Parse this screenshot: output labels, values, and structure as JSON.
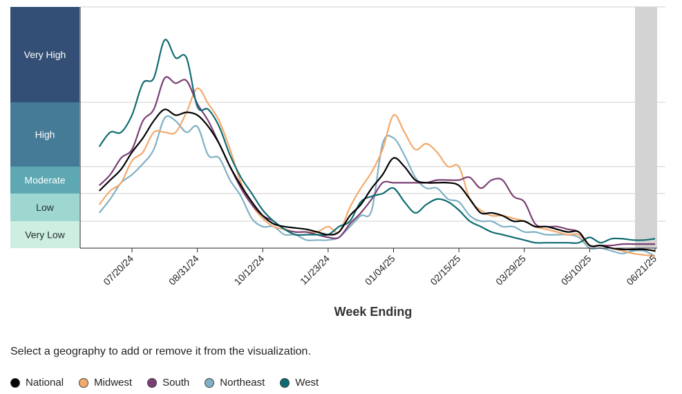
{
  "chart_data": {
    "type": "line",
    "xlabel": "Week Ending",
    "x_ticks": [
      "07/20/24",
      "08/31/24",
      "10/12/24",
      "11/23/24",
      "01/04/25",
      "02/15/25",
      "03/29/25",
      "05/10/25",
      "06/21/25"
    ],
    "levels": [
      {
        "label": "Very High",
        "color": "#344f76"
      },
      {
        "label": "High",
        "color": "#467b97"
      },
      {
        "label": "Moderate",
        "color": "#5ea8b3"
      },
      {
        "label": "Low",
        "color": "#9dd7d0"
      },
      {
        "label": "Very Low",
        "color": "#cdeee0"
      }
    ],
    "y_note": "level scale 0-100; Very Low 0-10, Low 10-20, Moderate 20-30, High 30-52.5, Very High 52.5-90",
    "ylim": [
      0,
      90
    ],
    "series": [
      {
        "name": "National",
        "color": "#000000",
        "points": [
          [
            "2024-06-29",
            21
          ],
          [
            "2024-07-06",
            25
          ],
          [
            "2024-07-13",
            29
          ],
          [
            "2024-07-20",
            35
          ],
          [
            "2024-07-27",
            40
          ],
          [
            "2024-08-03",
            46
          ],
          [
            "2024-08-10",
            50
          ],
          [
            "2024-08-17",
            48
          ],
          [
            "2024-08-24",
            49
          ],
          [
            "2024-08-31",
            48
          ],
          [
            "2024-09-07",
            44
          ],
          [
            "2024-09-14",
            38
          ],
          [
            "2024-09-21",
            30
          ],
          [
            "2024-09-28",
            23
          ],
          [
            "2024-10-05",
            17
          ],
          [
            "2024-10-12",
            12
          ],
          [
            "2024-10-19",
            9
          ],
          [
            "2024-10-26",
            8
          ],
          [
            "2024-11-02",
            7.5
          ],
          [
            "2024-11-09",
            7
          ],
          [
            "2024-11-16",
            6
          ],
          [
            "2024-11-23",
            5
          ],
          [
            "2024-11-30",
            6
          ],
          [
            "2024-12-07",
            12
          ],
          [
            "2024-12-14",
            16
          ],
          [
            "2024-12-21",
            22
          ],
          [
            "2024-12-28",
            27
          ],
          [
            "2025-01-04",
            33
          ],
          [
            "2025-01-11",
            30
          ],
          [
            "2025-01-18",
            25
          ],
          [
            "2025-01-25",
            24
          ],
          [
            "2025-02-01",
            24
          ],
          [
            "2025-02-08",
            24
          ],
          [
            "2025-02-15",
            23
          ],
          [
            "2025-02-22",
            18
          ],
          [
            "2025-03-01",
            13
          ],
          [
            "2025-03-08",
            13
          ],
          [
            "2025-03-15",
            12
          ],
          [
            "2025-03-22",
            10
          ],
          [
            "2025-03-29",
            10
          ],
          [
            "2025-04-05",
            8
          ],
          [
            "2025-04-12",
            8
          ],
          [
            "2025-04-19",
            7
          ],
          [
            "2025-04-26",
            6
          ],
          [
            "2025-05-03",
            6
          ],
          [
            "2025-05-10",
            1
          ],
          [
            "2025-05-17",
            1
          ],
          [
            "2025-05-24",
            0
          ],
          [
            "2025-05-31",
            -0.5
          ],
          [
            "2025-06-07",
            -0.5
          ],
          [
            "2025-06-14",
            -0.5
          ],
          [
            "2025-06-21",
            -1
          ]
        ]
      },
      {
        "name": "Midwest",
        "color": "#f2a96b",
        "points": [
          [
            "2024-06-29",
            16
          ],
          [
            "2024-07-06",
            21
          ],
          [
            "2024-07-13",
            24
          ],
          [
            "2024-07-20",
            32
          ],
          [
            "2024-07-27",
            35
          ],
          [
            "2024-08-03",
            42
          ],
          [
            "2024-08-10",
            42
          ],
          [
            "2024-08-17",
            42
          ],
          [
            "2024-08-24",
            49
          ],
          [
            "2024-08-31",
            58
          ],
          [
            "2024-09-07",
            52
          ],
          [
            "2024-09-14",
            46
          ],
          [
            "2024-09-21",
            36
          ],
          [
            "2024-09-28",
            24
          ],
          [
            "2024-10-05",
            16
          ],
          [
            "2024-10-12",
            11
          ],
          [
            "2024-10-19",
            8
          ],
          [
            "2024-10-26",
            7
          ],
          [
            "2024-11-02",
            6
          ],
          [
            "2024-11-09",
            6
          ],
          [
            "2024-11-16",
            6
          ],
          [
            "2024-11-23",
            8
          ],
          [
            "2024-11-30",
            6
          ],
          [
            "2024-12-07",
            15
          ],
          [
            "2024-12-14",
            22
          ],
          [
            "2024-12-21",
            28
          ],
          [
            "2024-12-28",
            36
          ],
          [
            "2025-01-04",
            48
          ],
          [
            "2025-01-11",
            42
          ],
          [
            "2025-01-18",
            36
          ],
          [
            "2025-01-25",
            38
          ],
          [
            "2025-02-01",
            35
          ],
          [
            "2025-02-08",
            30
          ],
          [
            "2025-02-15",
            30
          ],
          [
            "2025-02-22",
            18
          ],
          [
            "2025-03-01",
            14
          ],
          [
            "2025-03-08",
            12
          ],
          [
            "2025-03-15",
            12
          ],
          [
            "2025-03-22",
            11
          ],
          [
            "2025-03-29",
            10
          ],
          [
            "2025-04-05",
            8
          ],
          [
            "2025-04-12",
            7
          ],
          [
            "2025-04-19",
            6
          ],
          [
            "2025-04-26",
            5
          ],
          [
            "2025-05-03",
            5
          ],
          [
            "2025-05-10",
            1
          ],
          [
            "2025-05-17",
            1
          ],
          [
            "2025-05-24",
            0
          ],
          [
            "2025-05-31",
            -1
          ],
          [
            "2025-06-07",
            -2
          ],
          [
            "2025-06-14",
            -2.5
          ],
          [
            "2025-06-21",
            -3
          ]
        ]
      },
      {
        "name": "South",
        "color": "#7b3f73",
        "points": [
          [
            "2024-06-29",
            23
          ],
          [
            "2024-07-06",
            27
          ],
          [
            "2024-07-13",
            33
          ],
          [
            "2024-07-20",
            36
          ],
          [
            "2024-07-27",
            46
          ],
          [
            "2024-08-03",
            50
          ],
          [
            "2024-08-10",
            62
          ],
          [
            "2024-08-17",
            60
          ],
          [
            "2024-08-24",
            61
          ],
          [
            "2024-08-31",
            52
          ],
          [
            "2024-09-07",
            46
          ],
          [
            "2024-09-14",
            38
          ],
          [
            "2024-09-21",
            30
          ],
          [
            "2024-09-28",
            22
          ],
          [
            "2024-10-05",
            16
          ],
          [
            "2024-10-12",
            12
          ],
          [
            "2024-10-19",
            10
          ],
          [
            "2024-10-26",
            7
          ],
          [
            "2024-11-02",
            6
          ],
          [
            "2024-11-09",
            6
          ],
          [
            "2024-11-16",
            5
          ],
          [
            "2024-11-23",
            4
          ],
          [
            "2024-11-30",
            4
          ],
          [
            "2024-12-07",
            9
          ],
          [
            "2024-12-14",
            13
          ],
          [
            "2024-12-21",
            18
          ],
          [
            "2024-12-28",
            24
          ],
          [
            "2025-01-04",
            24
          ],
          [
            "2025-01-11",
            24
          ],
          [
            "2025-01-18",
            24
          ],
          [
            "2025-01-25",
            24
          ],
          [
            "2025-02-01",
            25
          ],
          [
            "2025-02-08",
            25
          ],
          [
            "2025-02-15",
            25
          ],
          [
            "2025-02-22",
            26
          ],
          [
            "2025-03-01",
            22
          ],
          [
            "2025-03-08",
            25
          ],
          [
            "2025-03-15",
            25
          ],
          [
            "2025-03-22",
            19
          ],
          [
            "2025-03-29",
            17
          ],
          [
            "2025-04-05",
            9
          ],
          [
            "2025-04-12",
            8
          ],
          [
            "2025-04-19",
            8
          ],
          [
            "2025-04-26",
            7
          ],
          [
            "2025-05-03",
            6
          ],
          [
            "2025-05-10",
            1
          ],
          [
            "2025-05-17",
            1
          ],
          [
            "2025-05-24",
            1
          ],
          [
            "2025-05-31",
            1.5
          ],
          [
            "2025-06-07",
            1.5
          ],
          [
            "2025-06-14",
            1.5
          ],
          [
            "2025-06-21",
            1.5
          ]
        ]
      },
      {
        "name": "Northeast",
        "color": "#7fb0c4",
        "points": [
          [
            "2024-06-29",
            13
          ],
          [
            "2024-07-06",
            18
          ],
          [
            "2024-07-13",
            24
          ],
          [
            "2024-07-20",
            27
          ],
          [
            "2024-07-27",
            31
          ],
          [
            "2024-08-03",
            36
          ],
          [
            "2024-08-10",
            47
          ],
          [
            "2024-08-17",
            46
          ],
          [
            "2024-08-24",
            42
          ],
          [
            "2024-08-31",
            44
          ],
          [
            "2024-09-07",
            34
          ],
          [
            "2024-09-14",
            33
          ],
          [
            "2024-09-21",
            25
          ],
          [
            "2024-09-28",
            19
          ],
          [
            "2024-10-05",
            11
          ],
          [
            "2024-10-12",
            8
          ],
          [
            "2024-10-19",
            8
          ],
          [
            "2024-10-26",
            5
          ],
          [
            "2024-11-02",
            5
          ],
          [
            "2024-11-09",
            3
          ],
          [
            "2024-11-16",
            3
          ],
          [
            "2024-11-23",
            3
          ],
          [
            "2024-11-30",
            4
          ],
          [
            "2024-12-07",
            8
          ],
          [
            "2024-12-14",
            12
          ],
          [
            "2024-12-21",
            14
          ],
          [
            "2024-12-28",
            38
          ],
          [
            "2025-01-04",
            40
          ],
          [
            "2025-01-11",
            34
          ],
          [
            "2025-01-18",
            26
          ],
          [
            "2025-01-25",
            22
          ],
          [
            "2025-02-01",
            22
          ],
          [
            "2025-02-08",
            18
          ],
          [
            "2025-02-15",
            17
          ],
          [
            "2025-02-22",
            12
          ],
          [
            "2025-03-01",
            10
          ],
          [
            "2025-03-08",
            10
          ],
          [
            "2025-03-15",
            8
          ],
          [
            "2025-03-22",
            8
          ],
          [
            "2025-03-29",
            6
          ],
          [
            "2025-04-05",
            6
          ],
          [
            "2025-04-12",
            5
          ],
          [
            "2025-04-19",
            5
          ],
          [
            "2025-04-26",
            5
          ],
          [
            "2025-05-03",
            4
          ],
          [
            "2025-05-10",
            0
          ],
          [
            "2025-05-17",
            0
          ],
          [
            "2025-05-24",
            -1
          ],
          [
            "2025-05-31",
            -2
          ],
          [
            "2025-06-07",
            -1
          ],
          [
            "2025-06-14",
            -1
          ],
          [
            "2025-06-21",
            -3
          ]
        ]
      },
      {
        "name": "West",
        "color": "#0e6b6f",
        "points": [
          [
            "2024-06-29",
            37
          ],
          [
            "2024-07-06",
            42
          ],
          [
            "2024-07-13",
            42
          ],
          [
            "2024-07-20",
            48
          ],
          [
            "2024-07-27",
            60
          ],
          [
            "2024-08-03",
            62
          ],
          [
            "2024-08-10",
            77
          ],
          [
            "2024-08-17",
            70
          ],
          [
            "2024-08-24",
            70
          ],
          [
            "2024-08-31",
            51
          ],
          [
            "2024-09-07",
            50
          ],
          [
            "2024-09-14",
            44
          ],
          [
            "2024-09-21",
            34
          ],
          [
            "2024-09-28",
            26
          ],
          [
            "2024-10-05",
            20
          ],
          [
            "2024-10-12",
            14
          ],
          [
            "2024-10-19",
            10
          ],
          [
            "2024-10-26",
            7
          ],
          [
            "2024-11-02",
            5
          ],
          [
            "2024-11-09",
            5
          ],
          [
            "2024-11-16",
            5
          ],
          [
            "2024-11-23",
            5
          ],
          [
            "2024-11-30",
            8
          ],
          [
            "2024-12-07",
            10
          ],
          [
            "2024-12-14",
            17
          ],
          [
            "2024-12-21",
            19
          ],
          [
            "2024-12-28",
            20
          ],
          [
            "2025-01-04",
            22
          ],
          [
            "2025-01-11",
            17
          ],
          [
            "2025-01-18",
            13
          ],
          [
            "2025-01-25",
            16
          ],
          [
            "2025-02-01",
            18
          ],
          [
            "2025-02-08",
            17
          ],
          [
            "2025-02-15",
            14
          ],
          [
            "2025-02-22",
            10
          ],
          [
            "2025-03-01",
            8
          ],
          [
            "2025-03-08",
            6
          ],
          [
            "2025-03-15",
            5
          ],
          [
            "2025-03-22",
            4
          ],
          [
            "2025-03-29",
            3
          ],
          [
            "2025-04-05",
            2
          ],
          [
            "2025-04-12",
            2
          ],
          [
            "2025-04-19",
            2
          ],
          [
            "2025-04-26",
            2
          ],
          [
            "2025-05-03",
            2
          ],
          [
            "2025-05-10",
            4
          ],
          [
            "2025-05-17",
            2
          ],
          [
            "2025-05-24",
            3.5
          ],
          [
            "2025-05-31",
            3.5
          ],
          [
            "2025-06-07",
            3
          ],
          [
            "2025-06-14",
            3
          ],
          [
            "2025-06-21",
            3.5
          ]
        ]
      }
    ]
  },
  "instruction": "Select a geography to add or remove it from the visualization.",
  "legend": [
    {
      "label": "National",
      "color": "#000000"
    },
    {
      "label": "Midwest",
      "color": "#f2a96b"
    },
    {
      "label": "South",
      "color": "#7b3f73"
    },
    {
      "label": "Northeast",
      "color": "#7fb0c4"
    },
    {
      "label": "West",
      "color": "#0e6b6f"
    }
  ]
}
